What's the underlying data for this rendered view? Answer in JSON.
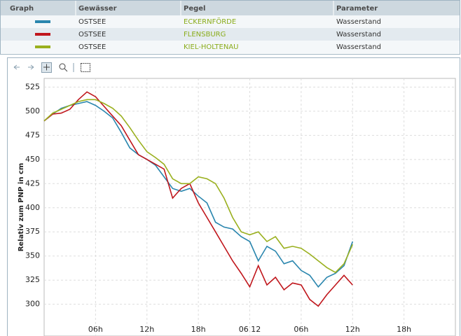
{
  "table": {
    "header": [
      "Graph",
      "Gewässer",
      "Pegel",
      "Parameter"
    ],
    "rows": [
      [
        "OSTSEE",
        "ECKERNFÖRDE",
        "Wasserstand"
      ],
      [
        "OSTSEE",
        "FLENSBURG",
        "Wasserstand"
      ],
      [
        "OSTSEE",
        "KIEL-HOLTENAU",
        "Wasserstand"
      ]
    ]
  },
  "chart_data": {
    "type": "line",
    "ylabel": "Relativ zum PNP in cm",
    "x": [
      0,
      1,
      2,
      3,
      4,
      5,
      6,
      7,
      8,
      9,
      10,
      11,
      12,
      13,
      14,
      15,
      16,
      17,
      18,
      19,
      20,
      21,
      22,
      23,
      24,
      25,
      26,
      27,
      28,
      29,
      30,
      31,
      32,
      33,
      34,
      35,
      36
    ],
    "series": [
      {
        "name": "ECKERNFÖRDE",
        "color": "#2a86ae",
        "values": [
          490,
          497,
          503,
          506,
          508,
          510,
          506,
          500,
          493,
          478,
          462,
          455,
          450,
          444,
          432,
          420,
          417,
          420,
          412,
          405,
          385,
          380,
          378,
          370,
          365,
          345,
          360,
          355,
          342,
          345,
          335,
          330,
          318,
          328,
          332,
          340,
          365
        ]
      },
      {
        "name": "FLENSBURG",
        "color": "#c0161c",
        "values": [
          490,
          497,
          498,
          502,
          512,
          520,
          515,
          505,
          495,
          485,
          470,
          455,
          450,
          445,
          440,
          410,
          420,
          425,
          405,
          390,
          375,
          360,
          345,
          332,
          318,
          340,
          320,
          328,
          315,
          322,
          320,
          305,
          298,
          310,
          320,
          330,
          320
        ]
      },
      {
        "name": "KIEL-HOLTENAU",
        "color": "#9ab01e",
        "values": [
          490,
          498,
          502,
          506,
          510,
          512,
          512,
          508,
          503,
          495,
          483,
          470,
          458,
          452,
          445,
          430,
          425,
          425,
          432,
          430,
          425,
          410,
          390,
          375,
          372,
          375,
          365,
          370,
          358,
          360,
          358,
          352,
          345,
          338,
          333,
          342,
          362
        ]
      }
    ],
    "xlim": [
      0,
      48
    ],
    "xticks": [
      {
        "value": 6,
        "label": "06h"
      },
      {
        "value": 12,
        "label": "12h"
      },
      {
        "value": 18,
        "label": "18h"
      },
      {
        "value": 24,
        "label": "06.12"
      },
      {
        "value": 30,
        "label": "06h"
      },
      {
        "value": 36,
        "label": "12h"
      },
      {
        "value": 42,
        "label": "18h"
      }
    ],
    "ylim": [
      278,
      534
    ],
    "yticks": [
      300,
      325,
      350,
      375,
      400,
      425,
      450,
      475,
      500,
      525
    ],
    "grid": true
  }
}
